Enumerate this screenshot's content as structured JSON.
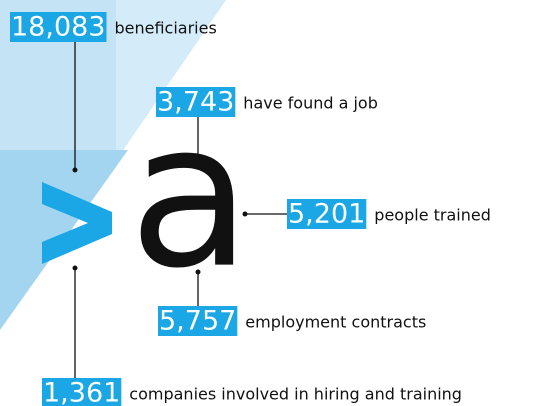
{
  "logo": {
    "letter": "a"
  },
  "items": [
    {
      "number": "18,083",
      "label": "beneficiaries"
    },
    {
      "number": "3,743",
      "label": "have found a job"
    },
    {
      "number": "5,201",
      "label": "people trained"
    },
    {
      "number": "5,757",
      "label": "employment contracts"
    },
    {
      "number": "1,361",
      "label": "companies involved in hiring and training"
    }
  ]
}
